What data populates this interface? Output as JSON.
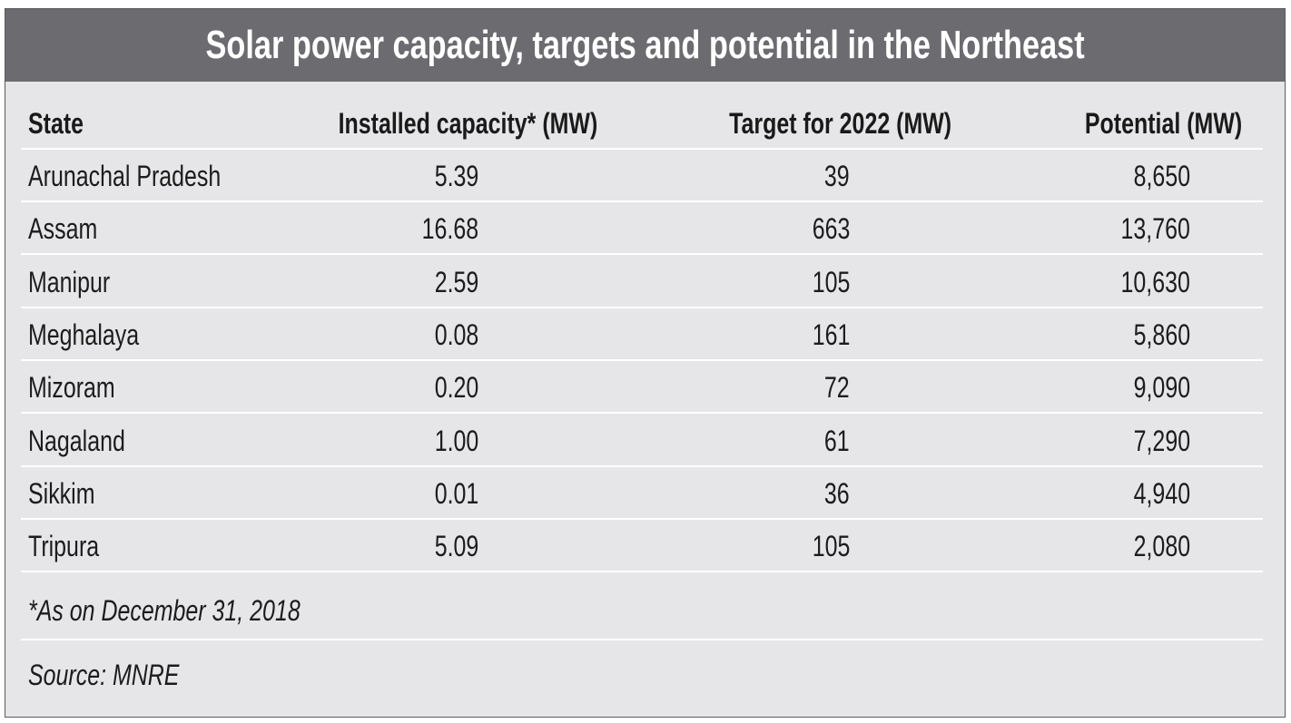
{
  "title": "Solar power capacity, targets and potential in the Northeast",
  "table": {
    "headers": {
      "state": "State",
      "installed": "Installed capacity* (MW)",
      "target": "Target for 2022 (MW)",
      "potential": "Potential (MW)"
    },
    "rows": [
      {
        "state": "Arunachal Pradesh",
        "installed": "5.39",
        "target": "39",
        "potential": "8,650"
      },
      {
        "state": "Assam",
        "installed": "16.68",
        "target": "663",
        "potential": "13,760"
      },
      {
        "state": "Manipur",
        "installed": "2.59",
        "target": "105",
        "potential": "10,630"
      },
      {
        "state": "Meghalaya",
        "installed": "0.08",
        "target": "161",
        "potential": "5,860"
      },
      {
        "state": "Mizoram",
        "installed": "0.20",
        "target": "72",
        "potential": "9,090"
      },
      {
        "state": "Nagaland",
        "installed": "1.00",
        "target": "61",
        "potential": "7,290"
      },
      {
        "state": "Sikkim",
        "installed": "0.01",
        "target": "36",
        "potential": "4,940"
      },
      {
        "state": "Tripura",
        "installed": "5.09",
        "target": "105",
        "potential": "2,080"
      }
    ]
  },
  "footnote": "*As on December 31, 2018",
  "source": "Source: MNRE",
  "colors": {
    "header_band": "#6b6b70",
    "body_background": "#e6e6e8",
    "separator": "#ffffff"
  },
  "chart_data": {
    "type": "table",
    "title": "Solar power capacity, targets and potential in the Northeast",
    "columns": [
      "State",
      "Installed capacity* (MW)",
      "Target for 2022 (MW)",
      "Potential (MW)"
    ],
    "rows": [
      [
        "Arunachal Pradesh",
        5.39,
        39,
        8650
      ],
      [
        "Assam",
        16.68,
        663,
        13760
      ],
      [
        "Manipur",
        2.59,
        105,
        10630
      ],
      [
        "Meghalaya",
        0.08,
        161,
        5860
      ],
      [
        "Mizoram",
        0.2,
        72,
        9090
      ],
      [
        "Nagaland",
        1.0,
        61,
        7290
      ],
      [
        "Sikkim",
        0.01,
        36,
        4940
      ],
      [
        "Tripura",
        5.09,
        105,
        2080
      ]
    ],
    "footnote": "*As on December 31, 2018",
    "source": "Source: MNRE"
  }
}
